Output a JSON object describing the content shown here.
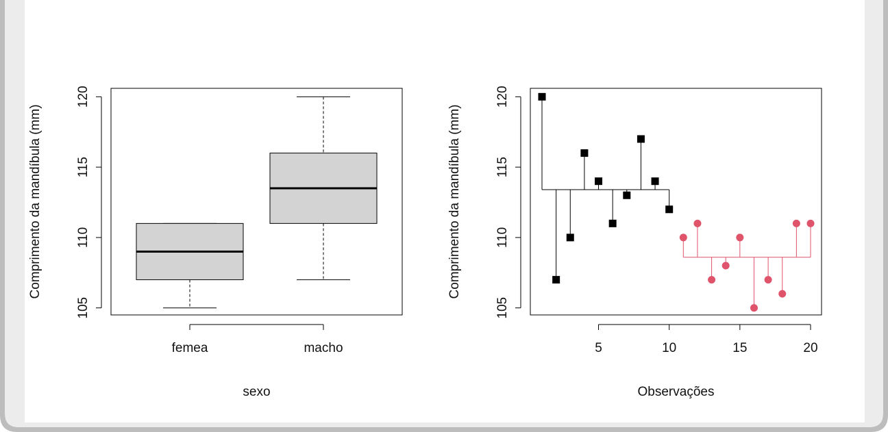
{
  "chart_data": [
    {
      "type": "boxplot",
      "xlabel": "sexo",
      "ylabel": "Comprimento da mandíbula (mm)",
      "ylim": [
        104.5,
        120.6
      ],
      "yticks": [
        105,
        110,
        115,
        120
      ],
      "categories": [
        "femea",
        "macho"
      ],
      "boxes": [
        {
          "name": "femea",
          "min": 105,
          "q1": 107,
          "median": 109,
          "q3": 111,
          "max": 111
        },
        {
          "name": "macho",
          "min": 107,
          "q1": 111,
          "median": 113.5,
          "q3": 116,
          "max": 120
        }
      ],
      "box_fill": "#d3d3d3",
      "grid": false
    },
    {
      "type": "scatter",
      "xlabel": "Observações",
      "ylabel": "Comprimento da mandíbula (mm)",
      "xlim": [
        0.5,
        20.7
      ],
      "ylim": [
        104.5,
        120.6
      ],
      "xticks": [
        5,
        10,
        15,
        20
      ],
      "yticks": [
        105,
        110,
        115,
        120
      ],
      "grid": false,
      "series": [
        {
          "color": "#000000",
          "marker": "square",
          "mean": 113.4,
          "points": [
            [
              1,
              120
            ],
            [
              2,
              107
            ],
            [
              3,
              110
            ],
            [
              4,
              116
            ],
            [
              5,
              114
            ],
            [
              6,
              111
            ],
            [
              7,
              113
            ],
            [
              8,
              117
            ],
            [
              9,
              114
            ],
            [
              10,
              112
            ]
          ]
        },
        {
          "color": "#df536b",
          "marker": "circle",
          "mean": 108.6,
          "points": [
            [
              11,
              110
            ],
            [
              12,
              111
            ],
            [
              13,
              107
            ],
            [
              14,
              108
            ],
            [
              15,
              110
            ],
            [
              16,
              105
            ],
            [
              17,
              107
            ],
            [
              18,
              106
            ],
            [
              19,
              111
            ],
            [
              20,
              111
            ]
          ]
        }
      ]
    }
  ]
}
